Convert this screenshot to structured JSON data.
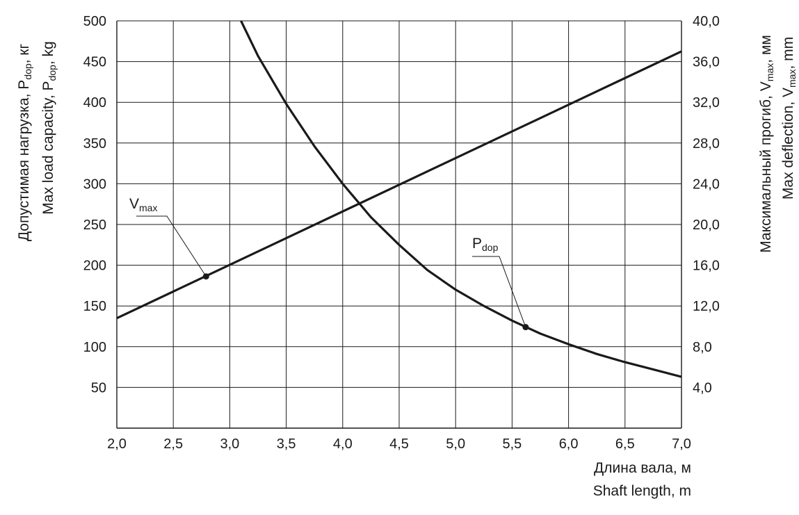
{
  "chart_data": {
    "type": "line",
    "x": [
      2.0,
      2.5,
      3.0,
      3.5,
      4.0,
      4.5,
      5.0,
      5.5,
      6.0,
      6.5,
      7.0
    ],
    "x_ticks": [
      "2,0",
      "2,5",
      "3,0",
      "3,5",
      "4,0",
      "4,5",
      "5,0",
      "5,5",
      "6,0",
      "6,5",
      "7,0"
    ],
    "xlim": [
      2.0,
      7.0
    ],
    "y_left_ticks": [
      "50",
      "100",
      "150",
      "200",
      "250",
      "300",
      "350",
      "400",
      "450",
      "500"
    ],
    "y_left_tick_values": [
      50,
      100,
      150,
      200,
      250,
      300,
      350,
      400,
      450,
      500
    ],
    "ylim_left": [
      0,
      500
    ],
    "y_right_ticks": [
      "4,0",
      "8,0",
      "12,0",
      "16,0",
      "20,0",
      "24,0",
      "28,0",
      "32,0",
      "36,0",
      "40,0"
    ],
    "y_right_tick_values": [
      4,
      8,
      12,
      16,
      20,
      24,
      28,
      32,
      36,
      40
    ],
    "ylim_right": [
      0,
      40
    ],
    "grid": true,
    "xlabel": {
      "ru": "Длина вала, м",
      "en": "Shaft length, m"
    },
    "ylabel_left": {
      "ru_main": "Допустимая нагрузка, P",
      "ru_sub": "dop",
      "ru_suffix": ", кг",
      "en_main": "Max load capacity, P",
      "en_sub": "dop",
      "en_suffix": ", kg"
    },
    "ylabel_right": {
      "ru_main": "Максимальный прогиб, V",
      "ru_sub": "max",
      "ru_suffix": ", мм",
      "en_main": "Max deflection, V",
      "en_sub": "max",
      "en_suffix": ", mm"
    },
    "series": [
      {
        "name": "P_dop",
        "label_main": "P",
        "label_sub": "dop",
        "axis": "left",
        "x": [
          3.1,
          3.25,
          3.5,
          3.75,
          4.0,
          4.25,
          4.5,
          4.75,
          5.0,
          5.25,
          5.5,
          5.75,
          6.0,
          6.25,
          6.5,
          6.75,
          7.0
        ],
        "y": [
          500,
          457,
          398,
          346,
          300,
          259,
          225,
          194,
          170,
          150,
          132,
          116,
          103,
          91,
          81,
          72,
          63
        ],
        "marker": {
          "x": 5.62,
          "y": 124
        }
      },
      {
        "name": "V_max",
        "label_main": "V",
        "label_sub": "max",
        "axis": "right",
        "x": [
          2.0,
          7.0
        ],
        "y": [
          10.8,
          37.0
        ],
        "marker": {
          "x": 2.79,
          "y": 14.9
        }
      }
    ]
  }
}
